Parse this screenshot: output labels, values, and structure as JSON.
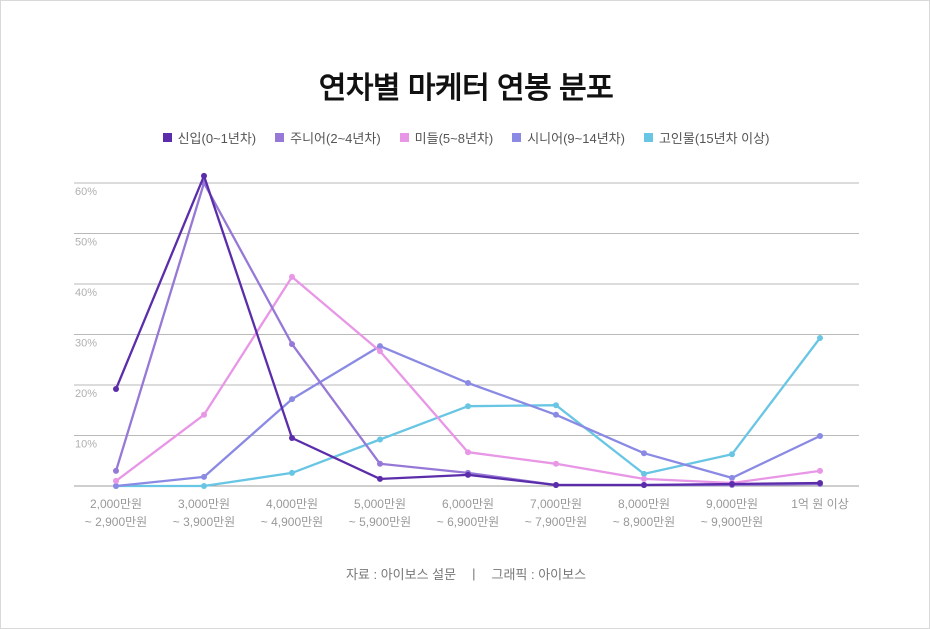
{
  "chart_data": {
    "type": "line",
    "title": "연차별 마케터 연봉 분포",
    "categories": [
      "2,000만원\n~ 2,900만원",
      "3,000만원\n~ 3,900만원",
      "4,000만원\n~ 4,900만원",
      "5,000만원\n~ 5,900만원",
      "6,000만원\n~ 6,900만원",
      "7,000만원\n~ 7,900만원",
      "8,000만원\n~ 8,900만원",
      "9,000만원\n~ 9,900만원",
      "1억 원 이상"
    ],
    "y_ticks": [
      "60%",
      "50%",
      "40%",
      "30%",
      "20%",
      "10%"
    ],
    "ylim": [
      0,
      60
    ],
    "grid": true,
    "legend_position": "top",
    "series": [
      {
        "name": "신입(0~1년차)",
        "color": "#5b2daa",
        "values": [
          19.2,
          61.4,
          9.5,
          1.4,
          2.2,
          0.2,
          0.2,
          0.4,
          0.6
        ]
      },
      {
        "name": "주니어(2~4년차)",
        "color": "#9678d6",
        "values": [
          3.0,
          60.0,
          28.1,
          4.4,
          2.6,
          0.2,
          0.2,
          0.2,
          0.4
        ]
      },
      {
        "name": "미들(5~8년차)",
        "color": "#e896e6",
        "values": [
          1.0,
          14.1,
          41.4,
          26.7,
          6.7,
          4.4,
          1.4,
          0.6,
          3.0
        ]
      },
      {
        "name": "시니어(9~14년차)",
        "color": "#8a8ae4",
        "values": [
          0.0,
          1.8,
          17.2,
          27.7,
          20.4,
          14.1,
          6.5,
          1.6,
          9.9
        ]
      },
      {
        "name": "고인물(15년차 이상)",
        "color": "#68c6e4",
        "values": [
          0.0,
          0.0,
          2.6,
          9.2,
          15.8,
          16.0,
          2.4,
          6.3,
          29.3
        ]
      }
    ]
  },
  "footer": {
    "source": "자료 : 아이보스 설문",
    "separator": "|",
    "credit": "그래픽 : 아이보스"
  }
}
